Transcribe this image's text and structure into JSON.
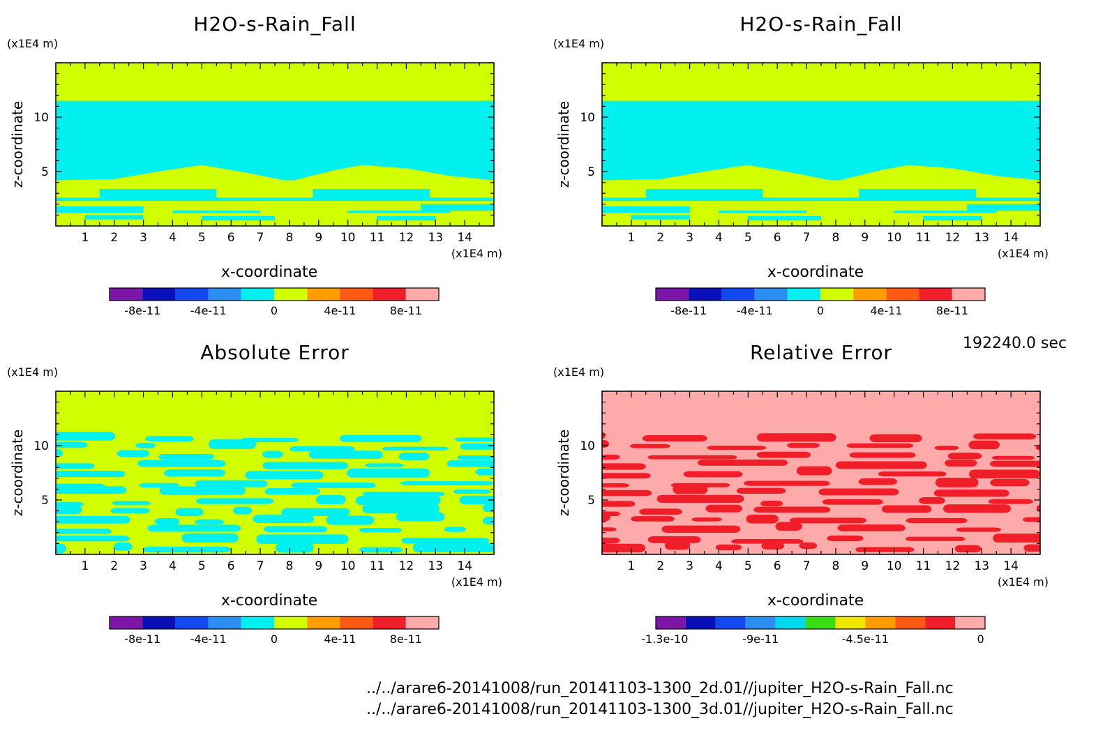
{
  "chart_data": [
    {
      "id": "top-left",
      "type": "heatmap",
      "title": "H2O-s-Rain_Fall",
      "xlabel": "x-coordinate",
      "ylabel": "z-coordinate",
      "x_unit": "(x1E4 m)",
      "y_unit": "(x1E4 m)",
      "xlim": [
        0,
        15
      ],
      "ylim": [
        0,
        15
      ],
      "xticks": [
        1,
        2,
        3,
        4,
        5,
        6,
        7,
        8,
        9,
        10,
        11,
        12,
        13,
        14
      ],
      "yticks": [
        5,
        10
      ],
      "colorbar": {
        "colors": [
          "#7b16a8",
          "#0a10b8",
          "#1448f0",
          "#2c8ef0",
          "#00f0f0",
          "#d2ff00",
          "#ff9c00",
          "#ff5a14",
          "#f01e28",
          "#ffaaaa"
        ],
        "tick_labels": [
          "-8e-11",
          "-4e-11",
          "0",
          "4e-11",
          "8e-11"
        ]
      },
      "fields": {
        "upper": "#d2ff00",
        "middle": "#00f0f0",
        "lower_band": "#d2ff00"
      }
    },
    {
      "id": "top-right",
      "type": "heatmap",
      "title": "H2O-s-Rain_Fall",
      "xlabel": "x-coordinate",
      "ylabel": "z-coordinate",
      "x_unit": "(x1E4 m)",
      "y_unit": "(x1E4 m)",
      "xlim": [
        0,
        15
      ],
      "ylim": [
        0,
        15
      ],
      "xticks": [
        1,
        2,
        3,
        4,
        5,
        6,
        7,
        8,
        9,
        10,
        11,
        12,
        13,
        14
      ],
      "yticks": [
        5,
        10
      ],
      "colorbar": {
        "colors": [
          "#7b16a8",
          "#0a10b8",
          "#1448f0",
          "#2c8ef0",
          "#00f0f0",
          "#d2ff00",
          "#ff9c00",
          "#ff5a14",
          "#f01e28",
          "#ffaaaa"
        ],
        "tick_labels": [
          "-8e-11",
          "-4e-11",
          "0",
          "4e-11",
          "8e-11"
        ]
      },
      "fields": {
        "upper": "#d2ff00",
        "middle": "#00f0f0",
        "lower_band": "#d2ff00"
      }
    },
    {
      "id": "bottom-left",
      "type": "heatmap",
      "title": "Absolute Error",
      "xlabel": "x-coordinate",
      "ylabel": "z-coordinate",
      "x_unit": "(x1E4 m)",
      "y_unit": "(x1E4 m)",
      "xlim": [
        0,
        15
      ],
      "ylim": [
        0,
        15
      ],
      "xticks": [
        1,
        2,
        3,
        4,
        5,
        6,
        7,
        8,
        9,
        10,
        11,
        12,
        13,
        14
      ],
      "yticks": [
        5,
        10
      ],
      "colorbar": {
        "colors": [
          "#7b16a8",
          "#0a10b8",
          "#1448f0",
          "#2c8ef0",
          "#00f0f0",
          "#d2ff00",
          "#ff9c00",
          "#ff5a14",
          "#f01e28",
          "#ffaaaa"
        ],
        "tick_labels": [
          "-8e-11",
          "-4e-11",
          "0",
          "4e-11",
          "8e-11"
        ]
      },
      "fields": {
        "upper": "#d2ff00",
        "base": "#d2ff00",
        "patches": "#00f0f0"
      }
    },
    {
      "id": "bottom-right",
      "type": "heatmap",
      "title": "Relative Error",
      "xlabel": "x-coordinate",
      "ylabel": "z-coordinate",
      "x_unit": "(x1E4 m)",
      "y_unit": "(x1E4 m)",
      "xlim": [
        0,
        15
      ],
      "ylim": [
        0,
        15
      ],
      "xticks": [
        1,
        2,
        3,
        4,
        5,
        6,
        7,
        8,
        9,
        10,
        11,
        12,
        13,
        14
      ],
      "yticks": [
        5,
        10
      ],
      "colorbar": {
        "colors": [
          "#7b16a8",
          "#0a10b8",
          "#1448f0",
          "#2c8ef0",
          "#00d8f0",
          "#3cdc14",
          "#f0e600",
          "#ff9c00",
          "#ff5a14",
          "#f01e28",
          "#ffaaaa"
        ],
        "tick_labels": [
          "-1.3e-10",
          "-9e-11",
          "-4.5e-11",
          "0"
        ]
      },
      "fields": {
        "upper": "#ffaaaa",
        "base": "#ffaaaa",
        "patches": "#f01e28"
      }
    }
  ],
  "footer": {
    "time": "192240.0 sec",
    "path_2d": "../../arare6-20141008/run_20141103-1300_2d.01//jupiter_H2O-s-Rain_Fall.nc",
    "path_3d": "../../arare6-20141008/run_20141103-1300_3d.01//jupiter_H2O-s-Rain_Fall.nc"
  }
}
